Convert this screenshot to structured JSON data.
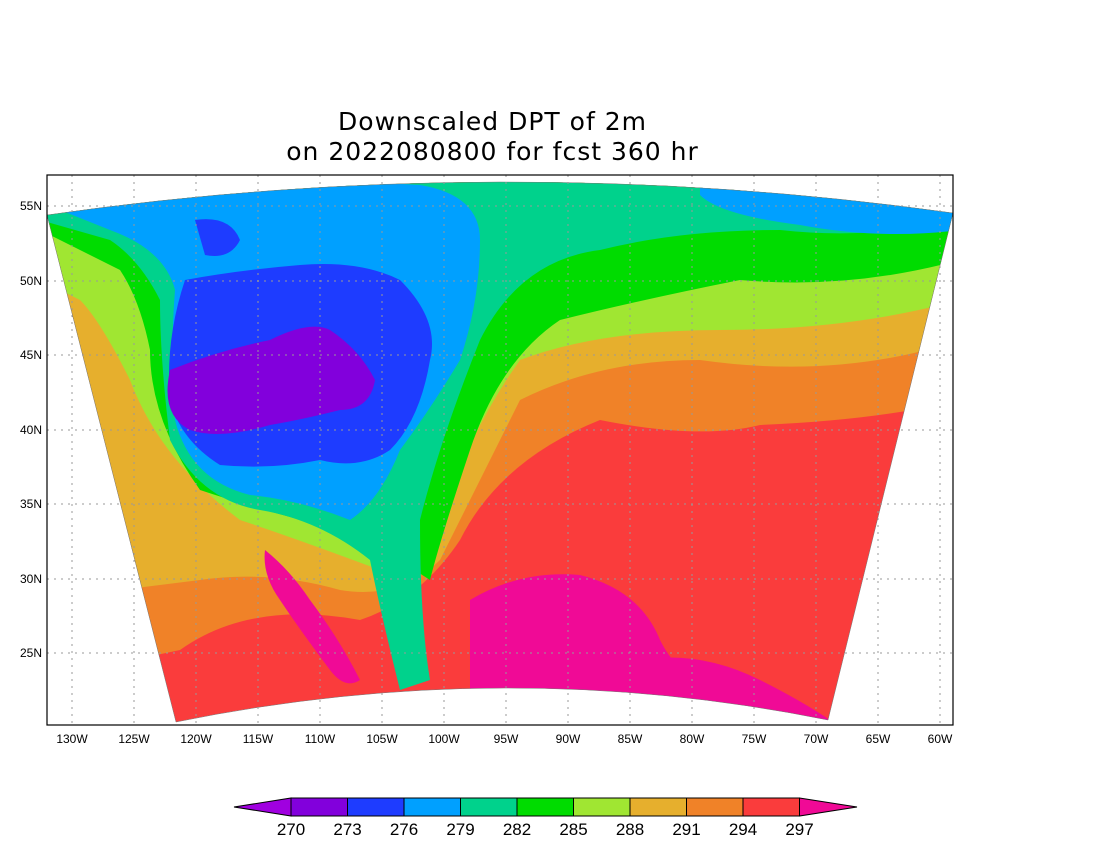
{
  "title": {
    "line1": "Downscaled DPT of 2m",
    "line2": "on 2022080800 for fcst 360 hr"
  },
  "map": {
    "projection": "lambert-conformal",
    "region": "North America",
    "lon_ticks": [
      "130W",
      "125W",
      "120W",
      "115W",
      "110W",
      "105W",
      "100W",
      "95W",
      "90W",
      "85W",
      "80W",
      "75W",
      "70W",
      "65W",
      "60W"
    ],
    "lat_ticks": [
      "55N",
      "50N",
      "45N",
      "40N",
      "35N",
      "30N",
      "25N"
    ],
    "grid": true
  },
  "colorbar": {
    "labels": [
      "270",
      "273",
      "276",
      "279",
      "282",
      "285",
      "288",
      "291",
      "294",
      "297"
    ],
    "colors": [
      "#a000e0",
      "#8200dc",
      "#1e3cff",
      "#00a0ff",
      "#00d28c",
      "#00dc00",
      "#a0e632",
      "#e6af2d",
      "#f08228",
      "#fa3c3c",
      "#f00a96"
    ]
  }
}
